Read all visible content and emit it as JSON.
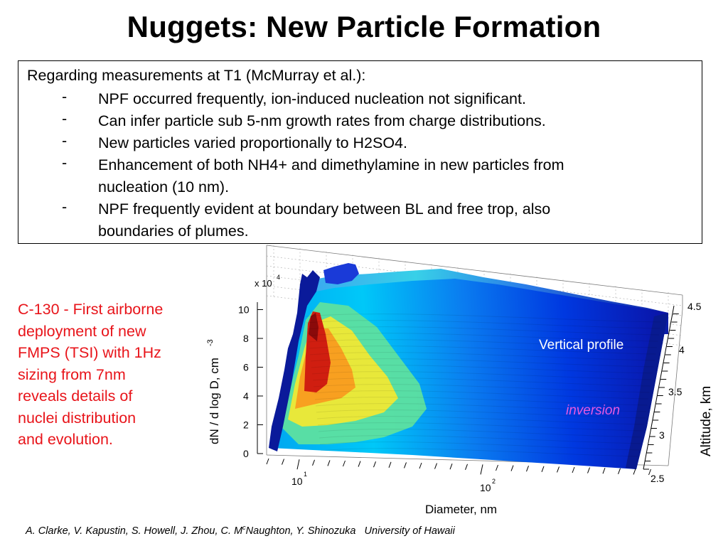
{
  "title": "Nuggets: New Particle Formation",
  "textbox": {
    "intro": "Regarding measurements at T1 (McMurray et al.):",
    "bullets": [
      {
        "dash": "-",
        "lines": [
          "NPF occurred frequently, ion-induced nucleation not significant."
        ]
      },
      {
        "dash": "-",
        "lines": [
          "Can infer particle sub 5-nm growth rates from charge distributions."
        ]
      },
      {
        "dash": "-",
        "lines": [
          "New particles varied proportionally to H2SO4."
        ]
      },
      {
        "dash": "-",
        "lines": [
          "Enhancement of both NH4+ and dimethylamine in new particles from",
          "nucleation (10 nm)."
        ]
      },
      {
        "dash": "-",
        "lines": [
          "NPF frequently evident at boundary between BL and free trop, also",
          "boundaries of plumes."
        ]
      }
    ]
  },
  "side_note": {
    "lines": [
      "C-130 - First airborne",
      "deployment of new",
      "FMPS (TSI) with 1Hz",
      "sizing from 7nm",
      "reveals details of",
      "nuclei distribution",
      "and evolution."
    ],
    "color": "#e8141a"
  },
  "plot": {
    "scale_base": "x 10",
    "scale_exp": "4",
    "z_ticks": [
      "0",
      "2",
      "4",
      "6",
      "8",
      "10"
    ],
    "z_label": "dN / d log D, cm",
    "z_label_exp": "-3",
    "x_ticks": [
      {
        "base": "10",
        "exp": "1"
      },
      {
        "base": "10",
        "exp": "2"
      }
    ],
    "x_label": "Diameter, nm",
    "y_ticks": [
      "2.5",
      "3",
      "3.5",
      "4",
      "4.5"
    ],
    "y_label": "Altitude, km",
    "annotation_vertical": "Vertical profile",
    "annotation_inversion": "inversion",
    "inversion_color": "#e65ae0"
  },
  "footer": {
    "authors_a": "A. Clarke, V. Kapustin, S. Howell, J. Zhou, C. M",
    "authors_sup": "c",
    "authors_b": "Naughton, Y. Shinozuka",
    "affiliation": "University of Hawaii"
  }
}
